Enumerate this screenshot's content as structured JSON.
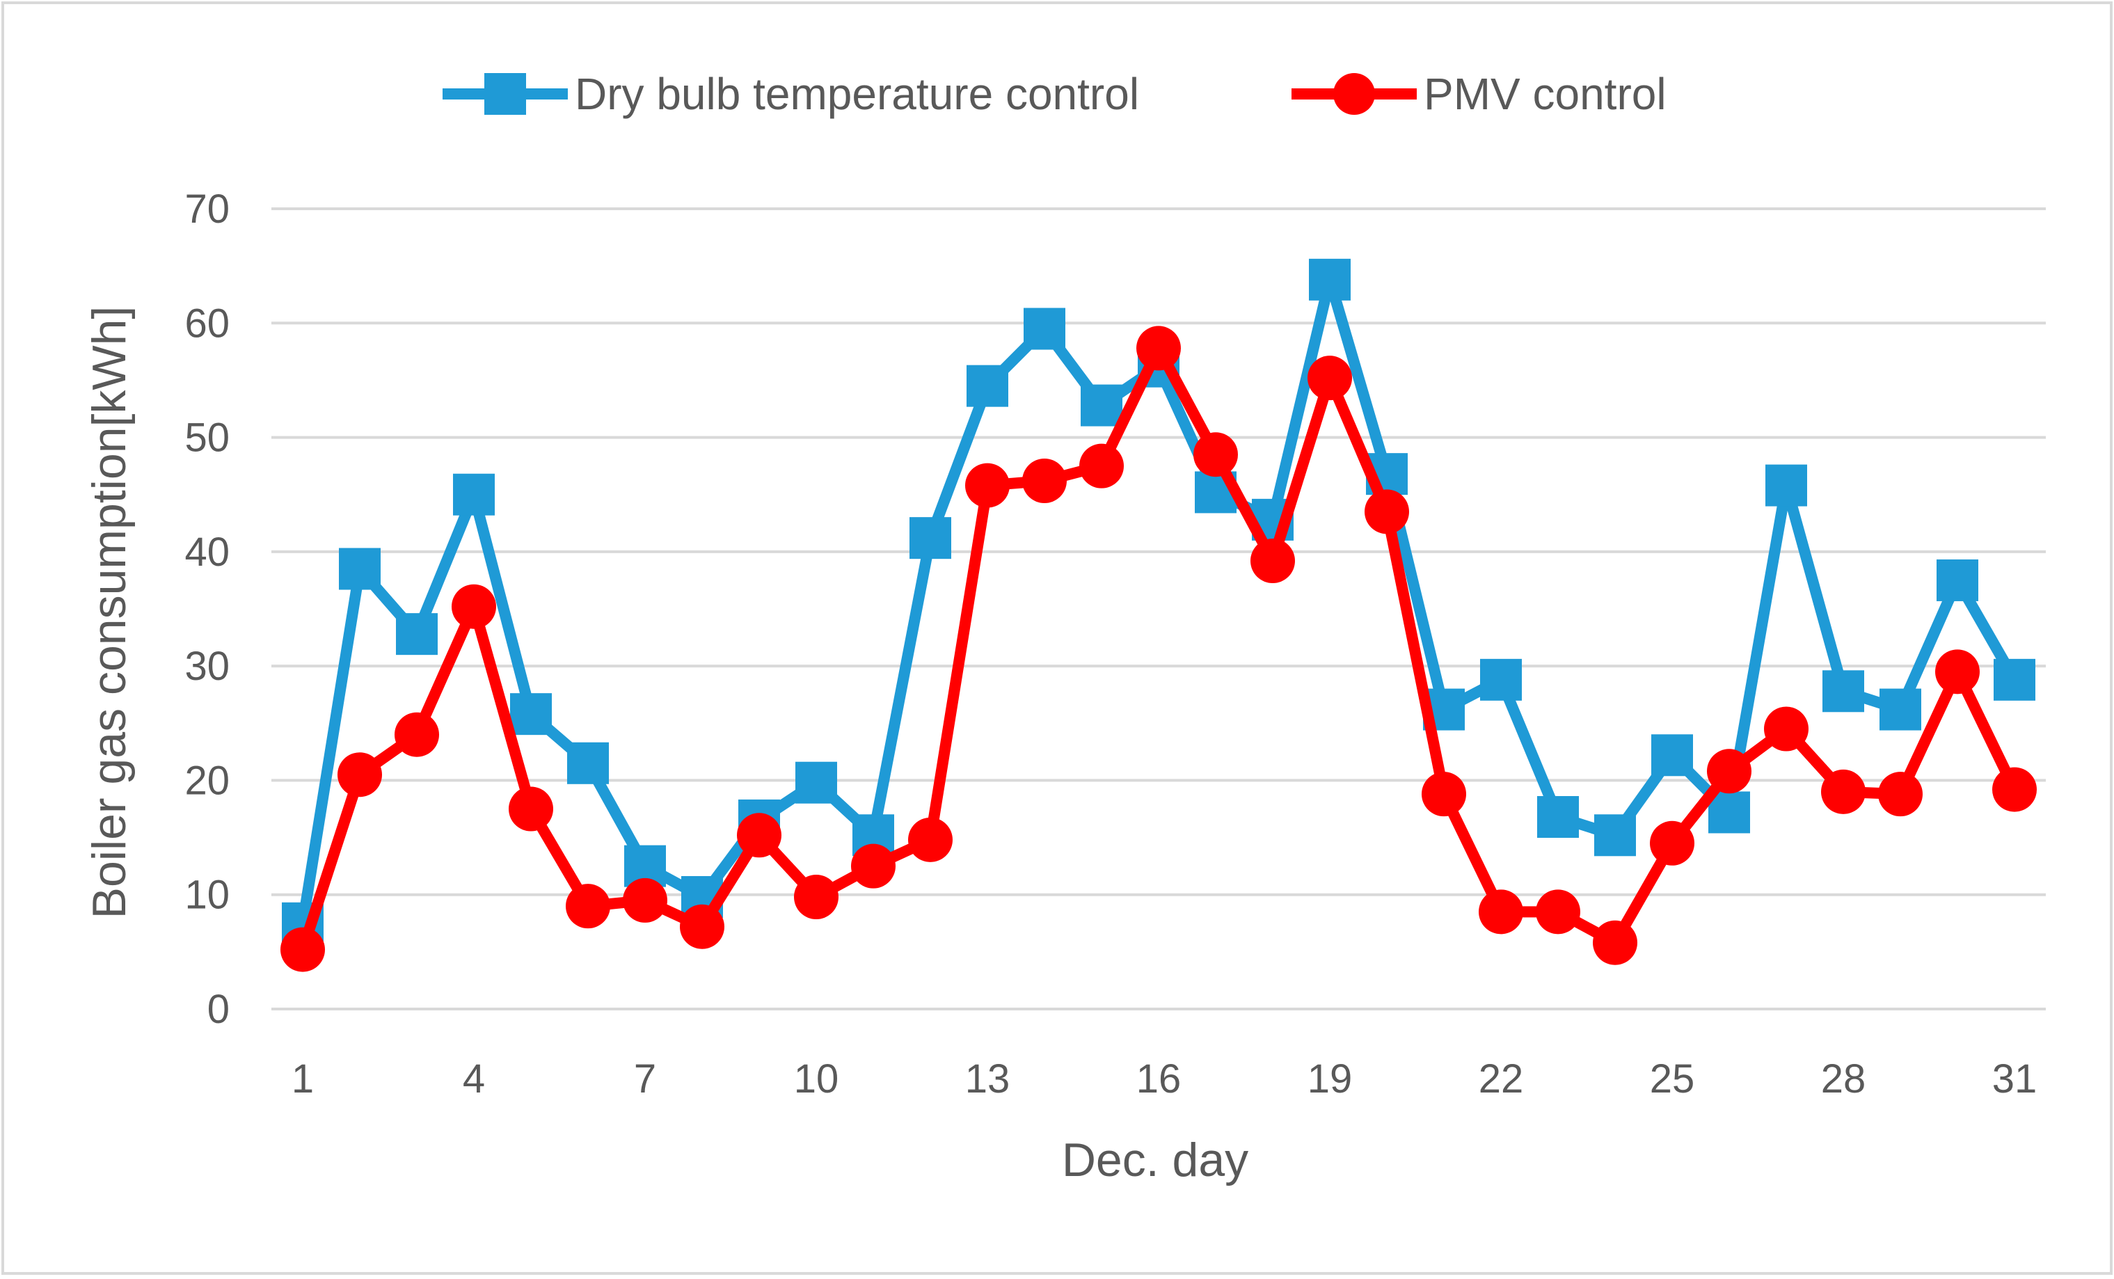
{
  "chart_data": {
    "type": "line",
    "title": "",
    "xlabel": "Dec. day",
    "ylabel": "Boiler gas consumption[kWh]",
    "x": [
      1,
      2,
      3,
      4,
      5,
      6,
      7,
      8,
      9,
      10,
      11,
      12,
      13,
      14,
      15,
      16,
      17,
      18,
      19,
      20,
      21,
      22,
      23,
      24,
      25,
      26,
      27,
      28,
      29,
      30,
      31
    ],
    "xticks": [
      "1",
      "4",
      "7",
      "10",
      "13",
      "16",
      "19",
      "22",
      "25",
      "28",
      "31"
    ],
    "ylim": [
      0,
      70
    ],
    "yticks": [
      "0",
      "10",
      "20",
      "30",
      "40",
      "50",
      "60",
      "70"
    ],
    "grid": true,
    "legend_position": "top-center",
    "series": [
      {
        "name": "Dry bulb temperature control",
        "color": "#1f9ad6",
        "marker": "square",
        "values": [
          7.5,
          38.5,
          32.8,
          45,
          25.8,
          21.5,
          12.5,
          9.8,
          16.5,
          19.8,
          15.2,
          41.2,
          54.5,
          59.5,
          52.8,
          56.2,
          45.2,
          42.8,
          63.8,
          46.8,
          26.2,
          28.8,
          16.8,
          15.2,
          22.2,
          17.2,
          45.8,
          27.8,
          26.2,
          37.5,
          28.8
        ]
      },
      {
        "name": "PMV control",
        "color": "#ff0000",
        "marker": "circle",
        "values": [
          5.2,
          20.5,
          24,
          35.2,
          17.5,
          9,
          9.5,
          7.2,
          15.2,
          9.8,
          12.5,
          14.8,
          45.8,
          46.2,
          47.5,
          57.8,
          48.5,
          39.2,
          55.2,
          43.5,
          18.8,
          8.5,
          8.5,
          5.8,
          14.5,
          20.8,
          24.5,
          19,
          18.8,
          29.5,
          19.2
        ]
      }
    ]
  }
}
